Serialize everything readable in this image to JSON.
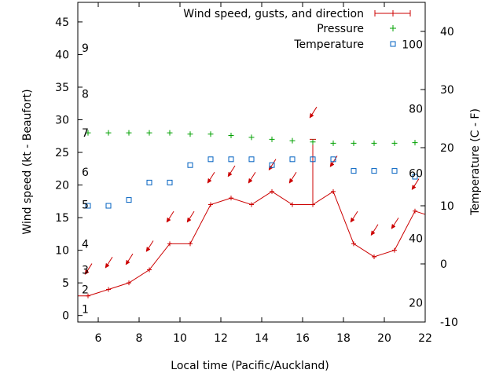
{
  "chart_data": {
    "type": "line",
    "xlabel": "Local time (Pacific/Auckland)",
    "ylabel_left": "Wind speed (kt - Beaufort)",
    "ylabel_right": "Temperature (C - F)",
    "xlim": [
      5,
      22
    ],
    "ylim_left": [
      -1,
      48
    ],
    "ylim_right": [
      -10,
      45
    ],
    "x_ticks": [
      6,
      8,
      10,
      12,
      14,
      16,
      18,
      20,
      22
    ],
    "y_ticks_left": [
      0,
      5,
      10,
      15,
      20,
      25,
      30,
      35,
      40,
      45
    ],
    "y_ticks_right": [
      -10,
      0,
      10,
      20,
      30,
      40
    ],
    "beaufort_labels": [
      {
        "label": "1",
        "kt": 1
      },
      {
        "label": "2",
        "kt": 4
      },
      {
        "label": "3",
        "kt": 7
      },
      {
        "label": "4",
        "kt": 11
      },
      {
        "label": "5",
        "kt": 17
      },
      {
        "label": "6",
        "kt": 22
      },
      {
        "label": "7",
        "kt": 28
      },
      {
        "label": "8",
        "kt": 34
      },
      {
        "label": "9",
        "kt": 41
      }
    ],
    "fahrenheit_labels": [
      {
        "label": "20",
        "celsius": -6.7
      },
      {
        "label": "40",
        "celsius": 4.4
      },
      {
        "label": "60",
        "celsius": 15.6
      },
      {
        "label": "80",
        "celsius": 26.7
      },
      {
        "label": "100",
        "celsius": 37.8
      }
    ],
    "legend": [
      {
        "label": "Wind speed, gusts, and direction",
        "symbol": "line-plus",
        "color": "#cc0000"
      },
      {
        "label": "Pressure",
        "symbol": "plus",
        "color": "#00a000"
      },
      {
        "label": "Temperature",
        "symbol": "square",
        "color": "#0060c0"
      }
    ],
    "series": [
      {
        "name": "Wind speed, gusts, and direction",
        "axis": "left",
        "color": "#cc0000",
        "x": [
          5.0,
          5.5,
          6.5,
          7.5,
          8.5,
          9.5,
          10.5,
          11.5,
          12.5,
          13.5,
          14.5,
          15.5,
          16.5,
          17.5,
          18.5,
          19.5,
          20.5,
          21.5,
          22.0
        ],
        "values": [
          3,
          3,
          4,
          5,
          7,
          11,
          11,
          17,
          18,
          17,
          19,
          17,
          17,
          19,
          11,
          9,
          10,
          16,
          15.5
        ]
      },
      {
        "name": "Gusts",
        "axis": "left",
        "color": "#cc0000",
        "x": [
          16.5
        ],
        "from": [
          17
        ],
        "to": [
          27
        ]
      },
      {
        "name": "Wind direction arrows",
        "axis": "left",
        "color": "#cc0000",
        "x": [
          5.5,
          6.5,
          7.5,
          8.5,
          9.5,
          10.5,
          11.5,
          12.5,
          13.5,
          14.5,
          15.5,
          16.5,
          17.5,
          18.5,
          19.5,
          20.5,
          21.5
        ],
        "y": [
          7,
          8,
          8.5,
          10.5,
          15,
          15,
          21,
          22,
          21,
          23,
          21,
          31,
          23.5,
          15,
          13,
          14,
          20
        ]
      },
      {
        "name": "Pressure",
        "axis": "left",
        "color": "#00a000",
        "x": [
          5.5,
          6.5,
          7.5,
          8.5,
          9.5,
          10.5,
          11.5,
          12.5,
          13.5,
          14.5,
          15.5,
          16.5,
          17.5,
          18.5,
          19.5,
          20.5,
          21.5
        ],
        "values": [
          28,
          28,
          28,
          28,
          28,
          27.8,
          27.8,
          27.6,
          27.3,
          27.0,
          26.8,
          26.6,
          26.4,
          26.4,
          26.4,
          26.4,
          26.5
        ]
      },
      {
        "name": "Temperature",
        "axis": "right",
        "color": "#0060c0",
        "x": [
          5.5,
          6.5,
          7.5,
          8.5,
          9.5,
          10.5,
          11.5,
          12.5,
          13.5,
          14.5,
          15.5,
          16.5,
          17.5,
          18.5,
          19.5,
          20.5,
          21.5
        ],
        "values": [
          10,
          10,
          11,
          14,
          14,
          17,
          18,
          18,
          18,
          17,
          18,
          18,
          18,
          16,
          16,
          16,
          15
        ]
      }
    ]
  }
}
